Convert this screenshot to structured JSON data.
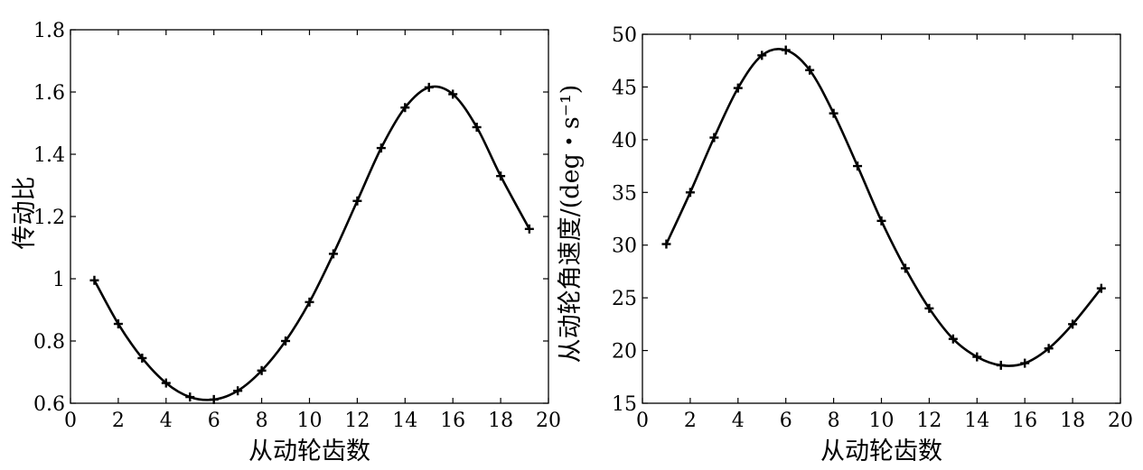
{
  "chart_data": [
    {
      "type": "line",
      "title": "",
      "xlabel": "从动轮齿数",
      "ylabel": "传动比",
      "xlim": [
        0,
        20
      ],
      "ylim": [
        0.6,
        1.8
      ],
      "xticks": [
        "0",
        "2",
        "4",
        "6",
        "8",
        "10",
        "12",
        "14",
        "16",
        "18",
        "20"
      ],
      "yticks": [
        "0.6",
        "0.8",
        "1",
        "1.2",
        "1.4",
        "1.6",
        "1.8"
      ],
      "grid": false,
      "marker": "plus",
      "color": "#000000",
      "series": [
        {
          "x": [
            1,
            2,
            3,
            4,
            5,
            6,
            7,
            8,
            9,
            10,
            11,
            12,
            13,
            14,
            15,
            16,
            17,
            18,
            19.2
          ],
          "values": [
            0.995,
            0.855,
            0.745,
            0.665,
            0.62,
            0.612,
            0.64,
            0.705,
            0.8,
            0.925,
            1.08,
            1.25,
            1.42,
            1.55,
            1.615,
            1.593,
            1.487,
            1.33,
            1.16
          ]
        }
      ]
    },
    {
      "type": "line",
      "title": "",
      "xlabel": "从动轮齿数",
      "ylabel": "从动轮角速度/(deg・s⁻¹)",
      "xlim": [
        0,
        20
      ],
      "ylim": [
        15,
        50
      ],
      "xticks": [
        "0",
        "2",
        "4",
        "6",
        "8",
        "10",
        "12",
        "14",
        "16",
        "18",
        "20"
      ],
      "yticks": [
        "15",
        "20",
        "25",
        "30",
        "35",
        "40",
        "45",
        "50"
      ],
      "grid": false,
      "marker": "plus",
      "color": "#000000",
      "series": [
        {
          "x": [
            1,
            2,
            3,
            4,
            5,
            6,
            7,
            8,
            9,
            10,
            11,
            12,
            13,
            14,
            15,
            16,
            17,
            18,
            19.2
          ],
          "values": [
            30.1,
            35.0,
            40.2,
            44.9,
            48.0,
            48.5,
            46.6,
            42.5,
            37.5,
            32.3,
            27.8,
            24.0,
            21.1,
            19.4,
            18.6,
            18.8,
            20.2,
            22.5,
            25.9
          ]
        }
      ]
    }
  ]
}
